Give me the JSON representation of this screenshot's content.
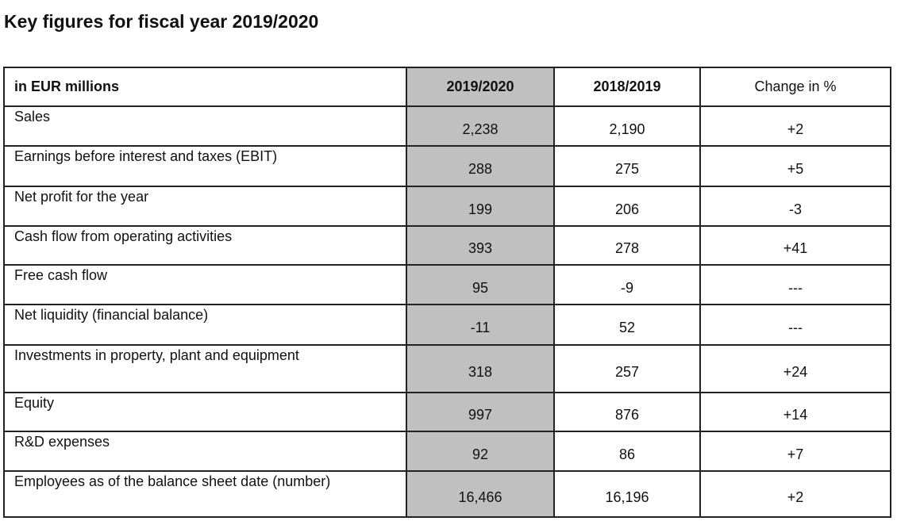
{
  "title": "Key figures for fiscal year 2019/2020",
  "table": {
    "headers": [
      "in EUR millions",
      "2019/2020",
      "2018/2019",
      "Change in %"
    ],
    "rows": [
      {
        "label": "Sales",
        "y2020": "2,238",
        "y2019": "2,190",
        "change": "+2"
      },
      {
        "label": "Earnings before interest and taxes (EBIT)",
        "y2020": "288",
        "y2019": "275",
        "change": "+5"
      },
      {
        "label": "Net profit for the year",
        "y2020": "199",
        "y2019": "206",
        "change": "-3"
      },
      {
        "label": "Cash flow from operating activities",
        "y2020": "393",
        "y2019": "278",
        "change": "+41"
      },
      {
        "label": "Free cash flow",
        "y2020": "95",
        "y2019": "-9",
        "change": "---"
      },
      {
        "label": "Net liquidity (financial balance)",
        "y2020": "-11",
        "y2019": "52",
        "change": "---"
      },
      {
        "label": "Investments in property, plant and equipment",
        "y2020": "318",
        "y2019": "257",
        "change": "+24"
      },
      {
        "label": "Equity",
        "y2020": "997",
        "y2019": "876",
        "change": "+14"
      },
      {
        "label": "R&D expenses",
        "y2020": "92",
        "y2019": "86",
        "change": "+7"
      },
      {
        "label": "Employees as of the balance sheet date (number)",
        "y2020": "16,466",
        "y2019": "16,196",
        "change": "+2"
      }
    ]
  },
  "colors": {
    "highlight_column": "#c0c0c0",
    "border": "#222222"
  }
}
